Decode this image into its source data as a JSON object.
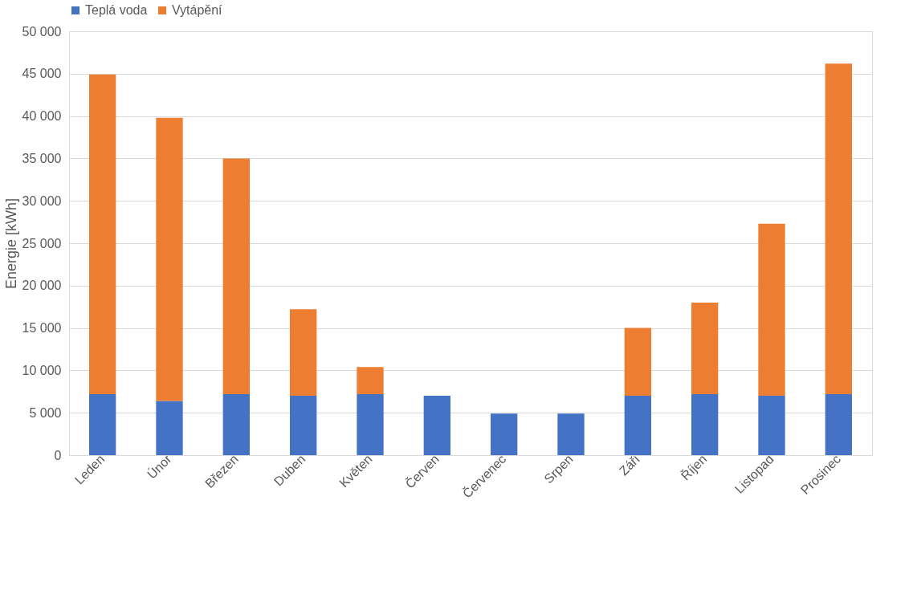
{
  "chart_data": {
    "type": "bar",
    "stacked": true,
    "ylabel": "Energie [kWh]",
    "categories": [
      "Leden",
      "Únor",
      "Březen",
      "Duben",
      "Květen",
      "Červen",
      "Červenec",
      "Srpen",
      "Září",
      "Říjen",
      "Listopad",
      "Prosinec"
    ],
    "series": [
      {
        "name": "Teplá voda",
        "color": "#4472c4",
        "values": [
          7200,
          6400,
          7200,
          7000,
          7200,
          7000,
          4900,
          4900,
          7000,
          7200,
          7000,
          7200
        ]
      },
      {
        "name": "Vytápění",
        "color": "#ed7d31",
        "values": [
          37700,
          33400,
          27800,
          10200,
          3200,
          null,
          null,
          null,
          8000,
          10800,
          20300,
          39000
        ]
      }
    ],
    "ylim": [
      0,
      50000
    ],
    "yticks": [
      {
        "value": 0,
        "label": "0"
      },
      {
        "value": 5000,
        "label": "5 000"
      },
      {
        "value": 10000,
        "label": "10 000"
      },
      {
        "value": 15000,
        "label": "15 000"
      },
      {
        "value": 20000,
        "label": "20 000"
      },
      {
        "value": 25000,
        "label": "25 000"
      },
      {
        "value": 30000,
        "label": "30 000"
      },
      {
        "value": 35000,
        "label": "35 000"
      },
      {
        "value": 40000,
        "label": "40 000"
      },
      {
        "value": 45000,
        "label": "45 000"
      },
      {
        "value": 50000,
        "label": "50 000"
      }
    ],
    "grid": "y",
    "legend": "top"
  }
}
